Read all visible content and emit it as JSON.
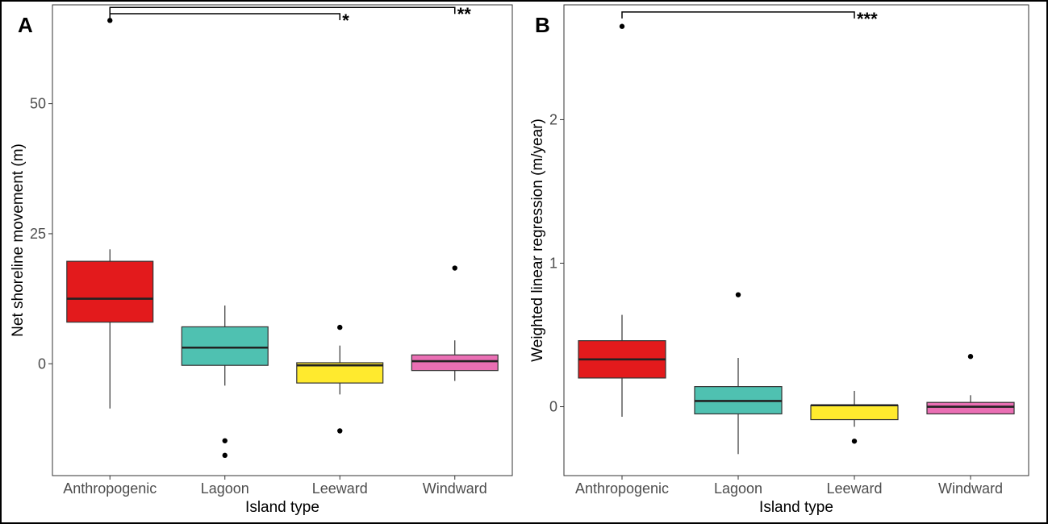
{
  "chart_data": [
    {
      "type": "boxplot",
      "panel_label": "A",
      "xlabel": "Island type",
      "ylabel": "Net shoreline movement (m)",
      "ylim": [
        -21.5,
        69
      ],
      "yticks": [
        0,
        25,
        50
      ],
      "categories": [
        "Anthropogenic",
        "Lagoon",
        "Leeward",
        "Windward"
      ],
      "colors": [
        "#e31a1c",
        "#4fc1b1",
        "#ffea2e",
        "#ea6fb4"
      ],
      "boxes": [
        {
          "category": "Anthropogenic",
          "q1": 8,
          "median": 12.5,
          "q3": 19.7,
          "whisker_low": -8.6,
          "whisker_high": 22,
          "outliers": [
            66
          ]
        },
        {
          "category": "Lagoon",
          "q1": -0.3,
          "median": 3.1,
          "q3": 7.1,
          "whisker_low": -4.2,
          "whisker_high": 11.2,
          "outliers": [
            -14.8,
            -17.6
          ]
        },
        {
          "category": "Leeward",
          "q1": -3.7,
          "median": -0.3,
          "q3": 0.2,
          "whisker_low": -5.9,
          "whisker_high": 3.5,
          "outliers": [
            7,
            -12.9
          ]
        },
        {
          "category": "Windward",
          "q1": -1.3,
          "median": 0.5,
          "q3": 1.7,
          "whisker_low": -3.3,
          "whisker_high": 4.5,
          "outliers": [
            18.4
          ]
        }
      ],
      "significance": [
        {
          "from": "Anthropogenic",
          "to": "Leeward",
          "y": 67.3,
          "label": "*"
        },
        {
          "from": "Anthropogenic",
          "to": "Windward",
          "y": 68.5,
          "label": "**"
        }
      ]
    },
    {
      "type": "boxplot",
      "panel_label": "B",
      "xlabel": "Island type",
      "ylabel": "Weighted linear regression (m/year)",
      "ylim": [
        -0.48,
        2.8
      ],
      "yticks": [
        0,
        1,
        2
      ],
      "categories": [
        "Anthropogenic",
        "Lagoon",
        "Leeward",
        "Windward"
      ],
      "colors": [
        "#e31a1c",
        "#4fc1b1",
        "#ffea2e",
        "#ea6fb4"
      ],
      "boxes": [
        {
          "category": "Anthropogenic",
          "q1": 0.2,
          "median": 0.33,
          "q3": 0.46,
          "whisker_low": -0.07,
          "whisker_high": 0.64,
          "outliers": [
            2.65
          ]
        },
        {
          "category": "Lagoon",
          "q1": -0.05,
          "median": 0.04,
          "q3": 0.14,
          "whisker_low": -0.33,
          "whisker_high": 0.34,
          "outliers": [
            0.78
          ]
        },
        {
          "category": "Leeward",
          "q1": -0.09,
          "median": 0.01,
          "q3": 0.01,
          "whisker_low": -0.14,
          "whisker_high": 0.11,
          "outliers": [
            -0.24
          ]
        },
        {
          "category": "Windward",
          "q1": -0.05,
          "median": 0.0,
          "q3": 0.03,
          "whisker_low": -0.05,
          "whisker_high": 0.08,
          "outliers": [
            0.35
          ]
        }
      ],
      "significance": [
        {
          "from": "Anthropogenic",
          "to": "Leeward",
          "y": 2.75,
          "label": "***"
        }
      ]
    }
  ]
}
